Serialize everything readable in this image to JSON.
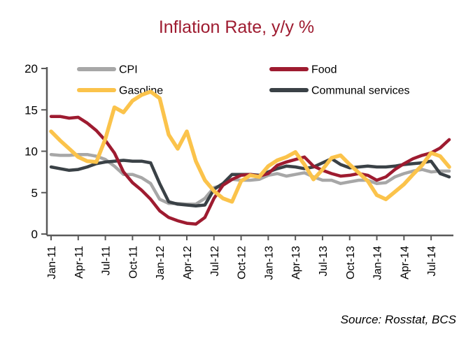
{
  "title": "Inflation Rate, y/y %",
  "source": "Source: Rosstat, BCS",
  "colors": {
    "title": "#9e1b30",
    "cpi": "#a7a7a7",
    "food": "#9e1b30",
    "gasoline": "#fbc34b",
    "communal": "#3a4146",
    "axis": "#595959",
    "text": "#000000",
    "background": "#ffffff"
  },
  "legend": {
    "items": [
      {
        "label": "CPI",
        "color": "#a7a7a7",
        "col": 0,
        "row": 0
      },
      {
        "label": "Food",
        "color": "#9e1b30",
        "col": 1,
        "row": 0
      },
      {
        "label": "Gasoline",
        "color": "#fbc34b",
        "col": 0,
        "row": 1
      },
      {
        "label": "Communal services",
        "color": "#3a4146",
        "col": 1,
        "row": 1
      }
    ]
  },
  "chart_data": {
    "type": "line",
    "title": "Inflation Rate, y/y %",
    "xlabel": "",
    "ylabel": "",
    "ylim": [
      0,
      20
    ],
    "yticks": [
      0,
      5,
      10,
      15,
      20
    ],
    "grid": false,
    "legend_position": "top",
    "x_tick_labels": [
      "Jan-11",
      "Apr-11",
      "Jul-11",
      "Oct-11",
      "Jan-12",
      "Apr-12",
      "Jul-12",
      "Oct-12",
      "Jan-13",
      "Apr-13",
      "Jul-13",
      "Oct-13",
      "Jan-14",
      "Apr-14",
      "Jul-14"
    ],
    "x": [
      "Jan-11",
      "Feb-11",
      "Mar-11",
      "Apr-11",
      "May-11",
      "Jun-11",
      "Jul-11",
      "Aug-11",
      "Sep-11",
      "Oct-11",
      "Nov-11",
      "Dec-11",
      "Jan-12",
      "Feb-12",
      "Mar-12",
      "Apr-12",
      "May-12",
      "Jun-12",
      "Jul-12",
      "Aug-12",
      "Sep-12",
      "Oct-12",
      "Nov-12",
      "Dec-12",
      "Jan-13",
      "Feb-13",
      "Mar-13",
      "Apr-13",
      "May-13",
      "Jun-13",
      "Jul-13",
      "Aug-13",
      "Sep-13",
      "Oct-13",
      "Nov-13",
      "Dec-13",
      "Jan-14",
      "Feb-14",
      "Mar-14",
      "Apr-14",
      "May-14",
      "Jun-14",
      "Jul-14",
      "Aug-14",
      "Sep-14"
    ],
    "series": [
      {
        "name": "CPI",
        "color": "#a7a7a7",
        "width": 4.5,
        "values": [
          9.6,
          9.5,
          9.5,
          9.6,
          9.6,
          9.4,
          9.0,
          8.2,
          7.2,
          7.2,
          6.8,
          6.1,
          4.2,
          3.7,
          3.7,
          3.6,
          3.6,
          4.3,
          5.6,
          5.9,
          6.6,
          6.5,
          6.5,
          6.6,
          7.1,
          7.3,
          7.0,
          7.2,
          7.4,
          6.9,
          6.5,
          6.5,
          6.1,
          6.3,
          6.5,
          6.5,
          6.1,
          6.2,
          6.9,
          7.3,
          7.6,
          7.8,
          7.5,
          7.6,
          7.6
        ]
      },
      {
        "name": "Communal services",
        "color": "#3a4146",
        "width": 4.5,
        "values": [
          8.1,
          7.9,
          7.7,
          7.8,
          8.1,
          8.5,
          8.7,
          8.8,
          8.9,
          8.8,
          8.8,
          8.6,
          6.1,
          3.9,
          3.6,
          3.5,
          3.4,
          3.5,
          5.4,
          6.1,
          7.2,
          7.2,
          7.2,
          7.1,
          7.5,
          7.9,
          8.2,
          8.1,
          7.9,
          8.1,
          8.6,
          9.1,
          8.4,
          8.0,
          8.1,
          8.2,
          8.1,
          8.1,
          8.2,
          8.4,
          8.5,
          8.6,
          8.8,
          7.3,
          6.9
        ]
      },
      {
        "name": "Food",
        "color": "#9e1b30",
        "width": 4.5,
        "values": [
          14.2,
          14.2,
          14.0,
          14.1,
          13.4,
          12.5,
          11.3,
          9.8,
          7.5,
          6.2,
          5.3,
          4.2,
          2.8,
          2.0,
          1.6,
          1.3,
          1.2,
          2.0,
          4.3,
          5.9,
          6.6,
          7.1,
          7.2,
          7.0,
          7.3,
          8.3,
          8.7,
          9.0,
          9.3,
          8.2,
          7.7,
          7.3,
          7.0,
          7.1,
          7.3,
          7.1,
          6.5,
          6.9,
          7.8,
          8.5,
          9.1,
          9.5,
          9.8,
          10.4,
          11.4
        ]
      },
      {
        "name": "Gasoline",
        "color": "#fbc34b",
        "width": 5.5,
        "values": [
          12.4,
          11.3,
          10.3,
          9.3,
          8.8,
          8.7,
          11.5,
          15.3,
          14.7,
          16.1,
          16.8,
          17.2,
          16.4,
          12.0,
          10.3,
          12.4,
          8.8,
          6.5,
          5.2,
          4.3,
          3.9,
          6.4,
          7.1,
          6.9,
          8.2,
          8.9,
          9.3,
          9.9,
          8.4,
          6.6,
          7.8,
          9.2,
          9.5,
          8.4,
          7.4,
          6.4,
          4.7,
          4.2,
          5.1,
          6.0,
          7.2,
          8.3,
          9.8,
          9.4,
          8.1
        ]
      }
    ]
  }
}
